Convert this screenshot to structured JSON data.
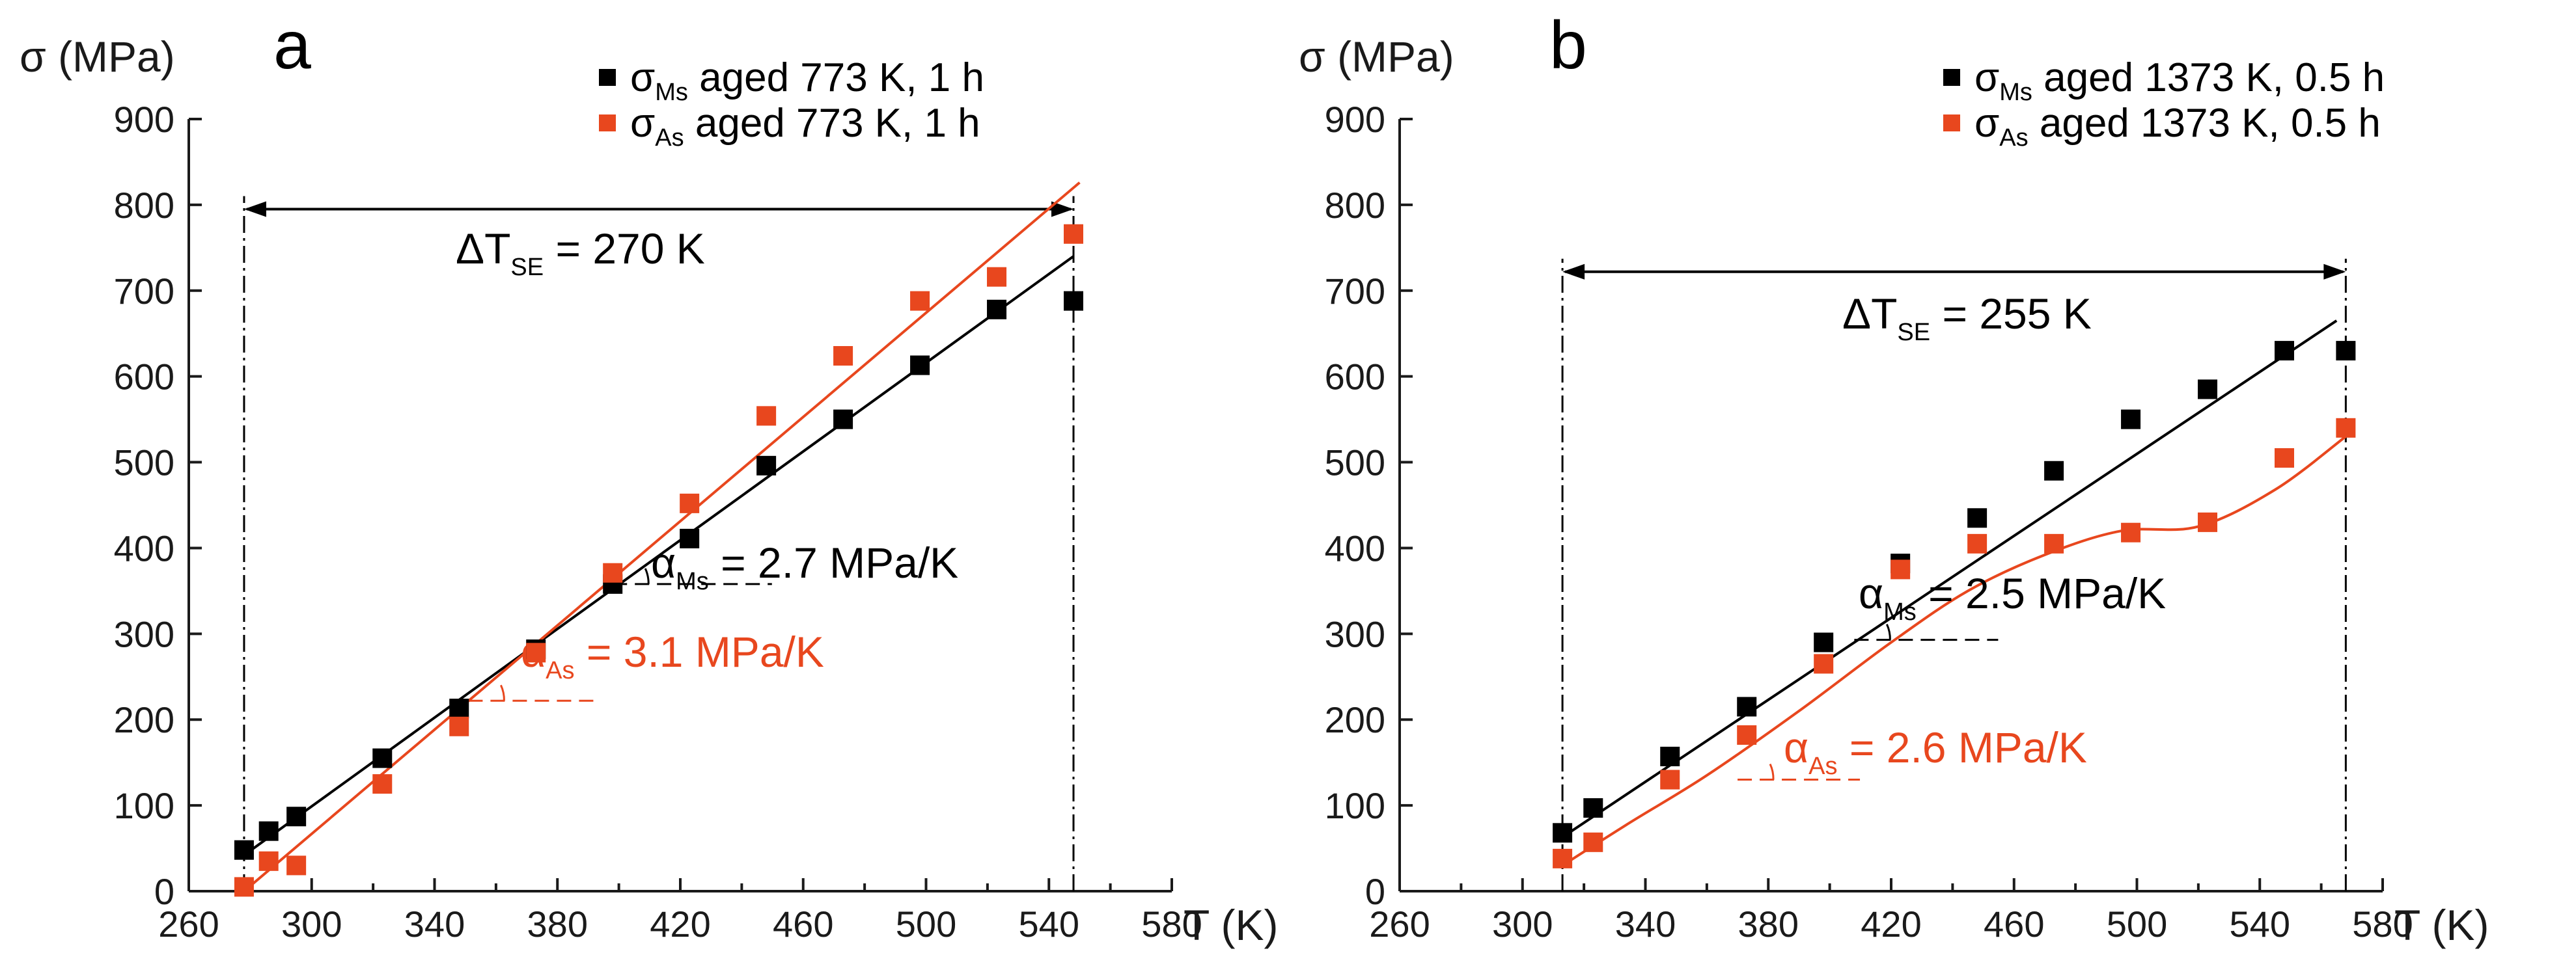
{
  "colors": {
    "ms": "#000000",
    "as": "#e8471e",
    "axis": "#1a1a1a"
  },
  "chart_data": [
    {
      "type": "scatter",
      "panel_label": "a",
      "ylabel": "σ (MPa)",
      "xlabel": "T (K)",
      "xlim": [
        260,
        580
      ],
      "ylim": [
        0,
        900
      ],
      "xticks": [
        260,
        300,
        340,
        380,
        420,
        460,
        500,
        540,
        580
      ],
      "yticks": [
        0,
        100,
        200,
        300,
        400,
        500,
        600,
        700,
        800,
        900
      ],
      "series": [
        {
          "key": "ms",
          "legend_sym": "σ",
          "legend_sub": "Ms",
          "legend_text": "aged 773 K, 1 h",
          "x": [
            278,
            286,
            295,
            323,
            348,
            373,
            398,
            423,
            448,
            473,
            498,
            523,
            548
          ],
          "y": [
            48,
            70,
            87,
            155,
            213,
            282,
            358,
            411,
            496,
            550,
            613,
            678,
            688
          ],
          "fit": [
            [
              278,
              42
            ],
            [
              548,
              740
            ]
          ]
        },
        {
          "key": "as",
          "legend_sym": "σ",
          "legend_sub": "As",
          "legend_text": "aged 773 K, 1 h",
          "x": [
            278,
            286,
            295,
            323,
            348,
            373,
            398,
            423,
            448,
            473,
            498,
            523,
            548
          ],
          "y": [
            5,
            35,
            30,
            125,
            192,
            278,
            371,
            452,
            554,
            624,
            688,
            716,
            766
          ],
          "fit": [
            [
              278,
              0
            ],
            [
              550,
              826
            ]
          ]
        }
      ],
      "range_marker": {
        "x_start": 278,
        "x_end": 548,
        "y": 795,
        "label_main": "ΔT",
        "label_sub": "SE",
        "label_value": " = 270 K"
      },
      "slope_labels": [
        {
          "key": "ms",
          "sym": "α",
          "sub": "Ms",
          "text": " = 2.7 MPa/K",
          "at_x": 398,
          "at_y": 358,
          "to_x": 435
        },
        {
          "key": "as",
          "sym": "α",
          "sub": "As",
          "text": " = 3.1 MPa/K",
          "at_x": 351,
          "at_y": 222,
          "to_x": 378
        }
      ]
    },
    {
      "type": "scatter",
      "panel_label": "b",
      "ylabel": "σ (MPa)",
      "xlabel": "T (K)",
      "xlim": [
        260,
        580
      ],
      "ylim": [
        0,
        900
      ],
      "xticks": [
        260,
        300,
        340,
        380,
        420,
        460,
        500,
        540,
        580
      ],
      "yticks": [
        0,
        100,
        200,
        300,
        400,
        500,
        600,
        700,
        800,
        900
      ],
      "series": [
        {
          "key": "ms",
          "legend_sym": "σ",
          "legend_sub": "Ms",
          "legend_text": "aged 1373 K, 0.5 h",
          "x": [
            313,
            323,
            348,
            373,
            398,
            423,
            448,
            473,
            498,
            523,
            548,
            568
          ],
          "y": [
            68,
            97,
            157,
            215,
            290,
            382,
            435,
            490,
            550,
            585,
            630,
            630
          ],
          "fit": [
            [
              313,
              63
            ],
            [
              565,
              665
            ]
          ]
        },
        {
          "key": "as",
          "legend_sym": "σ",
          "legend_sub": "As",
          "legend_text": "aged 1373 K, 0.5 h",
          "x": [
            313,
            323,
            348,
            373,
            398,
            423,
            448,
            473,
            498,
            523,
            548,
            568
          ],
          "y": [
            38,
            57,
            130,
            182,
            265,
            375,
            405,
            405,
            418,
            430,
            505,
            540
          ],
          "fit": [
            [
              313,
              30
            ],
            [
              335,
              80
            ],
            [
              360,
              135
            ],
            [
              390,
              210
            ],
            [
              420,
              290
            ],
            [
              445,
              350
            ],
            [
              470,
              392
            ],
            [
              495,
              420
            ],
            [
              520,
              425
            ],
            [
              545,
              468
            ],
            [
              568,
              530
            ]
          ]
        }
      ],
      "range_marker": {
        "x_start": 313,
        "x_end": 568,
        "y": 722,
        "label_main": "ΔT",
        "label_sub": "SE",
        "label_value": " = 255 K"
      },
      "slope_labels": [
        {
          "key": "ms",
          "sym": "α",
          "sub": "Ms",
          "text": " = 2.5 MPa/K",
          "at_x": 408,
          "at_y": 293,
          "to_x": 440
        },
        {
          "key": "as",
          "sym": "α",
          "sub": "As",
          "text": " = 2.6 MPa/K",
          "at_x": 370,
          "at_y": 130,
          "to_x": 395
        }
      ]
    }
  ]
}
